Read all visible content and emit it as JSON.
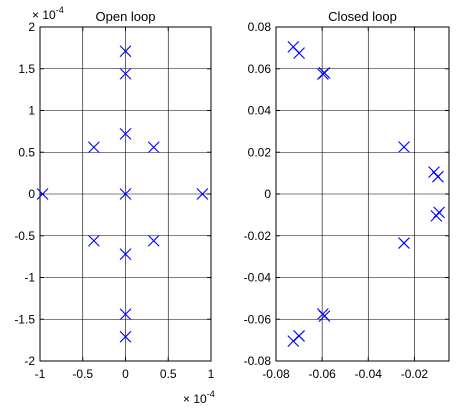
{
  "chart_data": [
    {
      "type": "scatter",
      "title": "Open loop",
      "xlim": [
        -1,
        1
      ],
      "ylim": [
        -2,
        2
      ],
      "x_multiplier": "× 10",
      "x_exponent": "-4",
      "y_multiplier": "× 10",
      "y_exponent": "-4",
      "xticks": [
        -1,
        -0.5,
        0,
        0.5,
        1
      ],
      "xtick_labels": [
        "-1",
        "-0.5",
        "0",
        "0.5",
        "1"
      ],
      "yticks": [
        2,
        1.5,
        1,
        0.5,
        0,
        -0.5,
        -1,
        -1.5,
        -2
      ],
      "ytick_labels": [
        "2",
        "1.5",
        "1",
        "0.5",
        "0",
        "-0.5",
        "-1",
        "-1.5",
        "-2"
      ],
      "grid": true,
      "marker": "x",
      "color": "#0000ff",
      "series": [
        {
          "points": [
            [
              0,
              1.71
            ],
            [
              0,
              1.44
            ],
            [
              0,
              0.72
            ],
            [
              -0.37,
              0.56
            ],
            [
              0.33,
              0.56
            ],
            [
              -0.97,
              0
            ],
            [
              0,
              0
            ],
            [
              0.9,
              0
            ],
            [
              -0.37,
              -0.56
            ],
            [
              0.33,
              -0.56
            ],
            [
              0,
              -0.72
            ],
            [
              0,
              -1.44
            ],
            [
              0,
              -1.71
            ]
          ]
        }
      ]
    },
    {
      "type": "scatter",
      "title": "Closed loop",
      "xlim": [
        -0.08,
        -0.005
      ],
      "ylim": [
        -0.08,
        0.08
      ],
      "xticks": [
        -0.08,
        -0.06,
        -0.04,
        -0.02
      ],
      "xtick_labels": [
        "-0.08",
        "-0.06",
        "-0.04",
        "-0.02"
      ],
      "yticks": [
        0.08,
        0.06,
        0.04,
        0.02,
        0,
        -0.02,
        -0.04,
        -0.06,
        -0.08
      ],
      "ytick_labels": [
        "0.08",
        "0.06",
        "0.04",
        "0.02",
        "0",
        "-0.02",
        "-0.04",
        "-0.06",
        "-0.08"
      ],
      "grid": true,
      "marker": "x",
      "color": "#0000ff",
      "series": [
        {
          "points": [
            [
              -0.0725,
              0.0705
            ],
            [
              -0.07,
              0.0675
            ],
            [
              -0.0597,
              0.0575
            ],
            [
              -0.059,
              0.058
            ],
            [
              -0.0245,
              0.0225
            ],
            [
              -0.0115,
              0.0105
            ],
            [
              -0.0098,
              0.0083
            ],
            [
              -0.0105,
              -0.0105
            ],
            [
              -0.0093,
              -0.0088
            ],
            [
              -0.0245,
              -0.0235
            ],
            [
              -0.0597,
              -0.0575
            ],
            [
              -0.059,
              -0.0585
            ],
            [
              -0.0725,
              -0.0705
            ],
            [
              -0.07,
              -0.068
            ]
          ]
        }
      ]
    }
  ]
}
